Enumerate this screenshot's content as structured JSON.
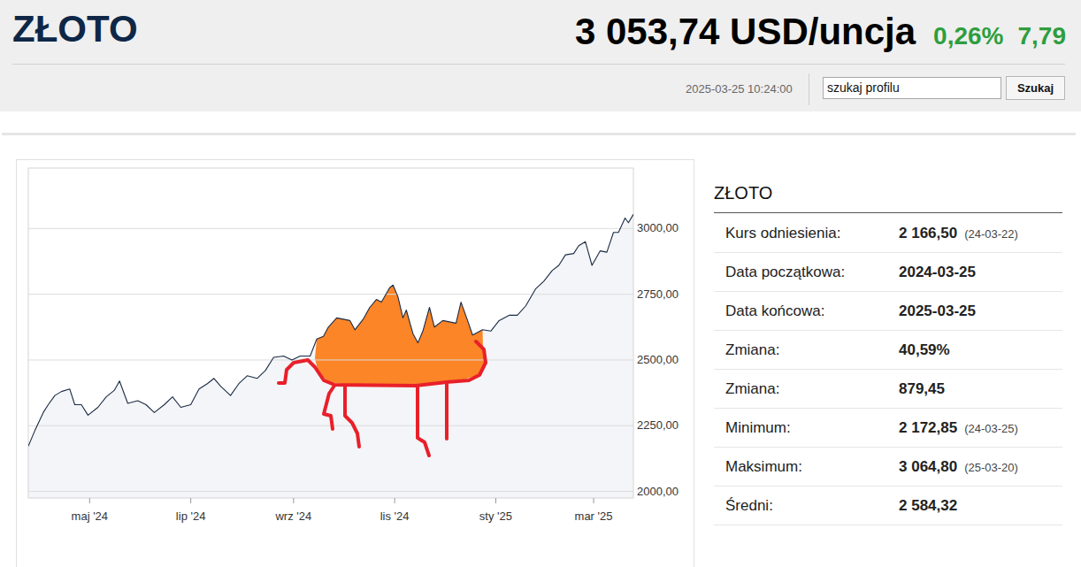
{
  "header": {
    "title": "ZŁOTO",
    "price": "3 053,74 USD/uncja",
    "change_pct": "0,26%",
    "change": "7,79",
    "timestamp": "2025-03-25 10:24:00",
    "search_placeholder": "szukaj profilu",
    "search_button": "Szukaj"
  },
  "chart_data": {
    "type": "line",
    "color": "#1b2b45",
    "grid": true,
    "x": [
      "2024-03-25",
      "2024-03-29",
      "2024-04-03",
      "2024-04-06",
      "2024-04-10",
      "2024-04-14",
      "2024-04-19",
      "2024-04-22",
      "2024-04-26",
      "2024-04-30",
      "2024-05-06",
      "2024-05-11",
      "2024-05-16",
      "2024-05-19",
      "2024-05-24",
      "2024-05-30",
      "2024-06-04",
      "2024-06-09",
      "2024-06-15",
      "2024-06-20",
      "2024-06-25",
      "2024-07-01",
      "2024-07-06",
      "2024-07-11",
      "2024-07-15",
      "2024-07-19",
      "2024-07-25",
      "2024-07-30",
      "2024-08-04",
      "2024-08-10",
      "2024-08-15",
      "2024-08-20",
      "2024-08-26",
      "2024-08-31",
      "2024-09-05",
      "2024-09-11",
      "2024-09-15",
      "2024-09-19",
      "2024-09-22",
      "2024-09-27",
      "2024-10-01",
      "2024-10-05",
      "2024-10-08",
      "2024-10-13",
      "2024-10-17",
      "2024-10-21",
      "2024-10-24",
      "2024-10-29",
      "2024-10-31",
      "2024-11-03",
      "2024-11-06",
      "2024-11-08",
      "2024-11-12",
      "2024-11-15",
      "2024-11-18",
      "2024-11-22",
      "2024-11-25",
      "2024-11-30",
      "2024-12-04",
      "2024-12-08",
      "2024-12-11",
      "2024-12-15",
      "2024-12-18",
      "2024-12-24",
      "2024-12-29",
      "2025-01-03",
      "2025-01-09",
      "2025-01-14",
      "2025-01-19",
      "2025-01-25",
      "2025-01-30",
      "2025-02-04",
      "2025-02-08",
      "2025-02-12",
      "2025-02-17",
      "2025-02-20",
      "2025-02-24",
      "2025-02-28",
      "2025-03-05",
      "2025-03-09",
      "2025-03-13",
      "2025-03-16",
      "2025-03-20",
      "2025-03-22",
      "2025-03-25"
    ],
    "values": [
      2172,
      2232,
      2300,
      2330,
      2365,
      2380,
      2390,
      2330,
      2330,
      2290,
      2320,
      2360,
      2385,
      2420,
      2335,
      2345,
      2330,
      2300,
      2330,
      2360,
      2320,
      2330,
      2390,
      2410,
      2430,
      2400,
      2365,
      2410,
      2440,
      2430,
      2460,
      2510,
      2515,
      2500,
      2515,
      2515,
      2580,
      2590,
      2625,
      2660,
      2655,
      2650,
      2615,
      2655,
      2700,
      2730,
      2720,
      2775,
      2785,
      2740,
      2660,
      2690,
      2600,
      2565,
      2610,
      2700,
      2625,
      2650,
      2645,
      2640,
      2720,
      2650,
      2595,
      2615,
      2610,
      2650,
      2670,
      2670,
      2705,
      2770,
      2800,
      2840,
      2860,
      2900,
      2905,
      2935,
      2950,
      2860,
      2915,
      2910,
      2985,
      2985,
      3040,
      3022,
      3054
    ],
    "xlim": [
      "2024-03-25",
      "2025-03-25"
    ],
    "xticks": [
      {
        "value": "2024-05-01",
        "label": "maj '24"
      },
      {
        "value": "2024-07-01",
        "label": "lip '24"
      },
      {
        "value": "2024-09-01",
        "label": "wrz '24"
      },
      {
        "value": "2024-11-01",
        "label": "lis '24"
      },
      {
        "value": "2025-01-01",
        "label": "sty '25"
      },
      {
        "value": "2025-03-01",
        "label": "mar '25"
      }
    ],
    "ylim": [
      1975,
      3230
    ],
    "yticks": [
      {
        "value": 2000,
        "label": "2000,00"
      },
      {
        "value": 2250,
        "label": "2250,00"
      },
      {
        "value": 2500,
        "label": "2500,00"
      },
      {
        "value": 2750,
        "label": "2750,00"
      },
      {
        "value": 3000,
        "label": "3000,00"
      }
    ]
  },
  "info_table": {
    "title": "ZŁOTO",
    "rows": [
      {
        "label": "Kurs odniesienia:",
        "value": "2 166,50",
        "date": "(24-03-22)"
      },
      {
        "label": "Data początkowa:",
        "value": "2024-03-25"
      },
      {
        "label": "Data końcowa:",
        "value": "2025-03-25"
      },
      {
        "label": "Zmiana:",
        "value": "40,59%"
      },
      {
        "label": "Zmiana:",
        "value": "879,45"
      },
      {
        "label": "Minimum:",
        "value": "2 172,85",
        "date": "(24-03-25)"
      },
      {
        "label": "Maksimum:",
        "value": "3 064,80",
        "date": "(25-03-20)"
      },
      {
        "label": "Średni:",
        "value": "2 584,32"
      }
    ]
  }
}
